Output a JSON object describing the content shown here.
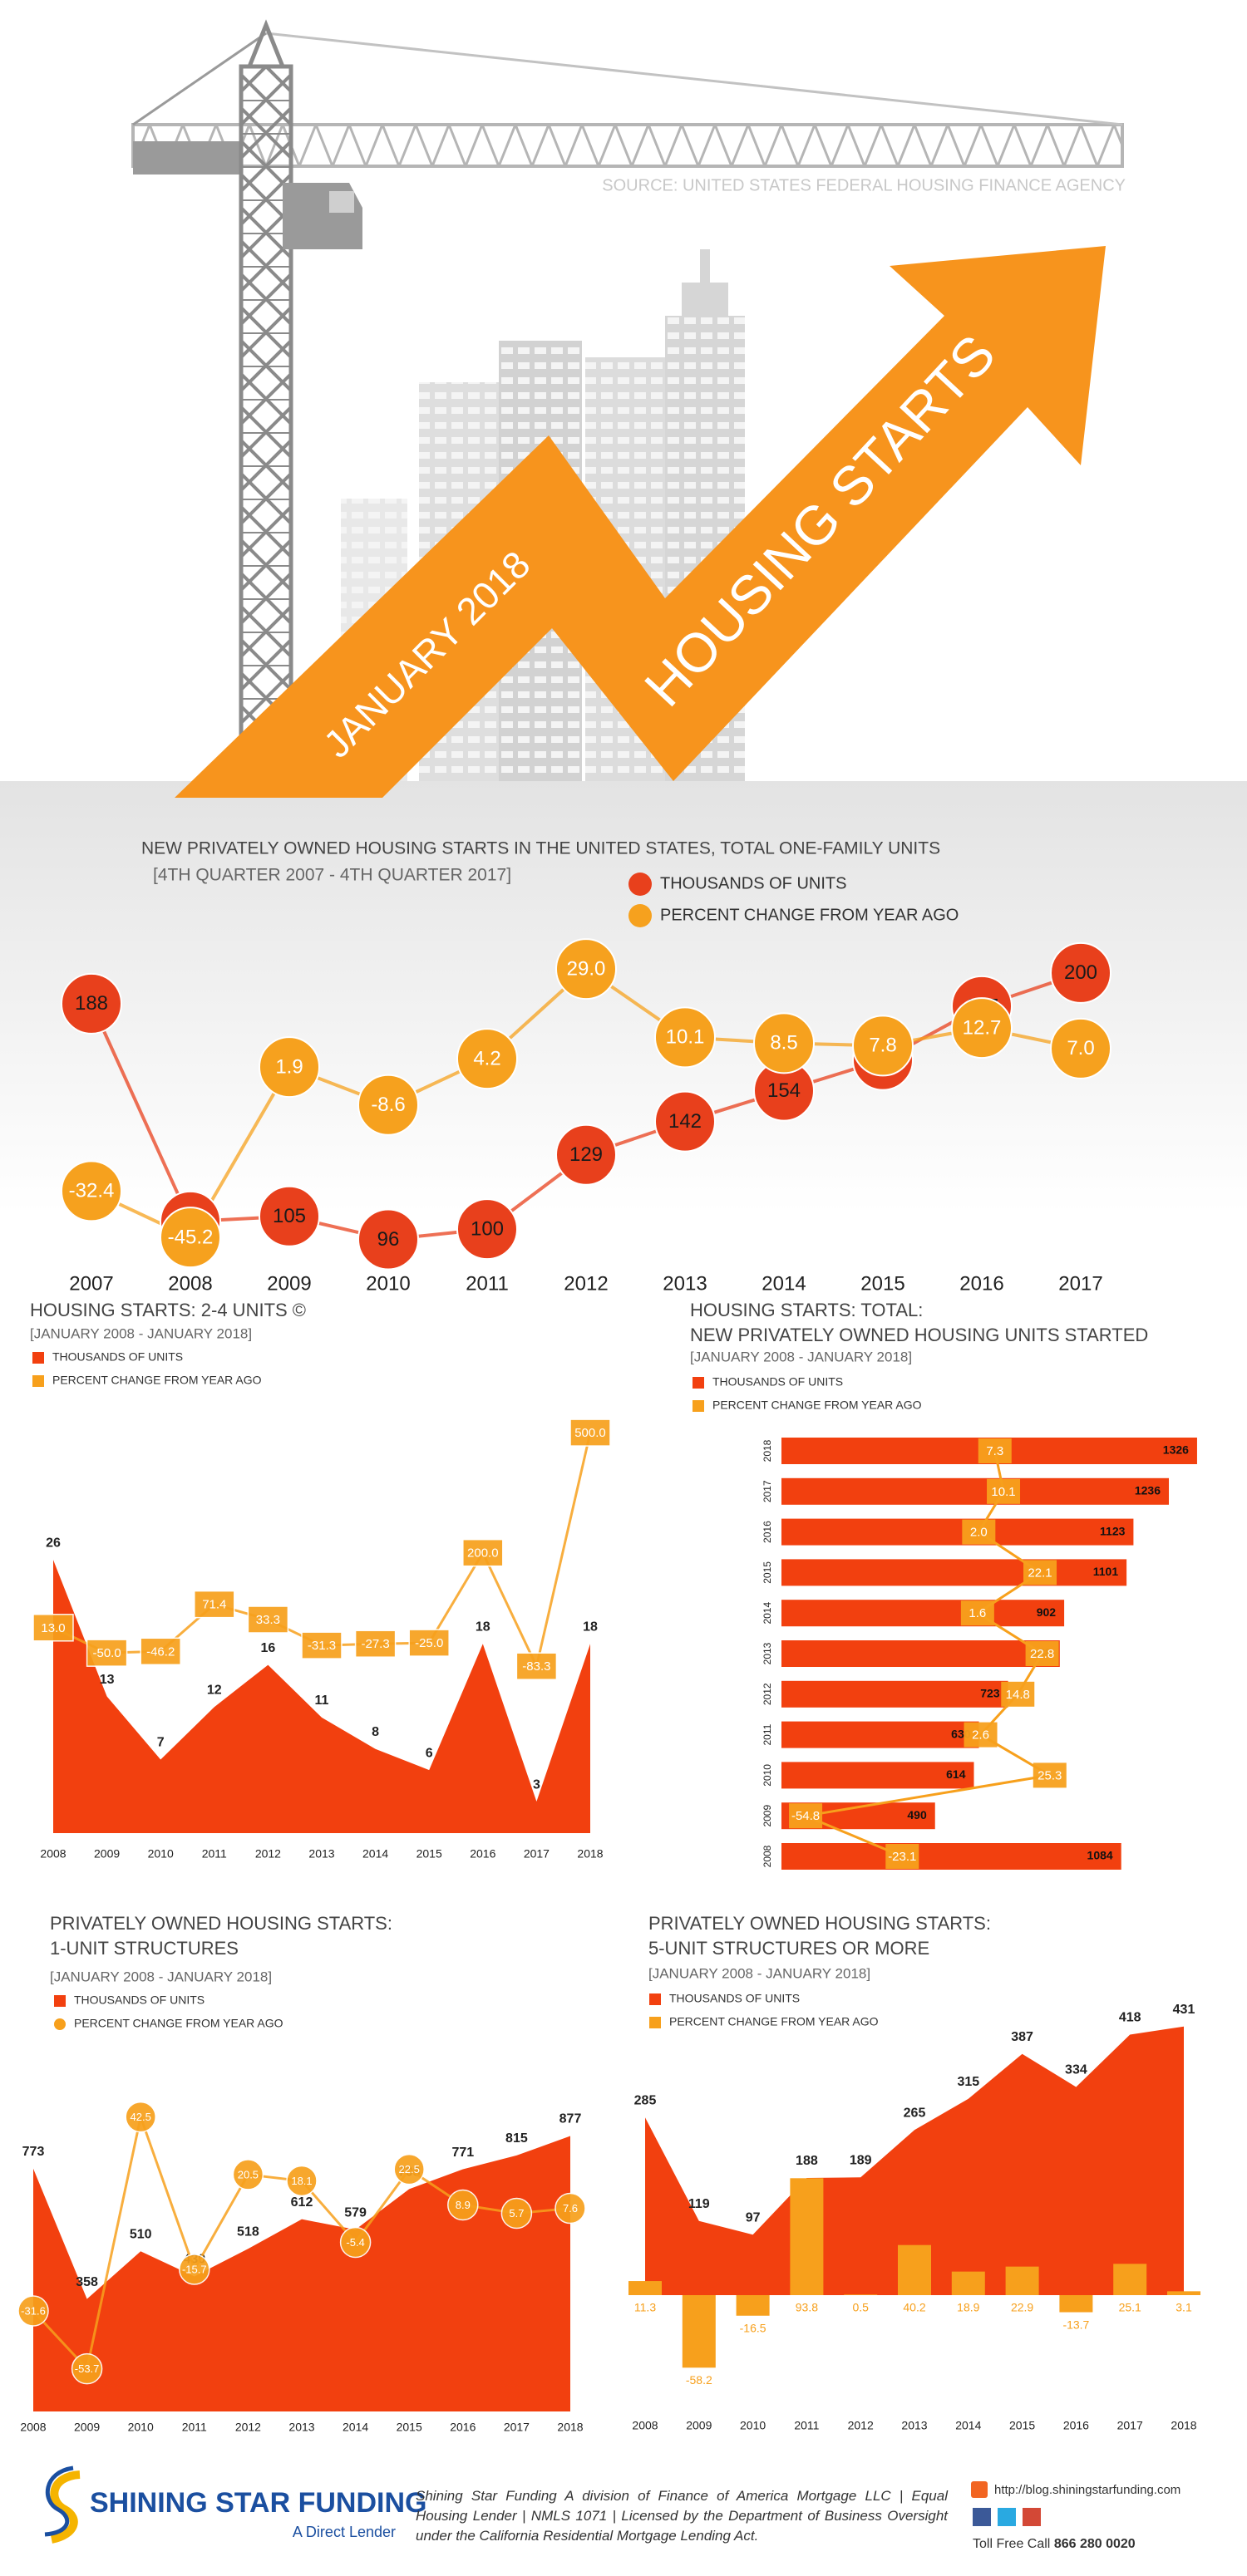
{
  "header": {
    "source": "SOURCE: UNITED STATES FEDERAL HOUSING FINANCE AGENCY",
    "date": "JANUARY 2018",
    "title": "HOUSING STARTS"
  },
  "chart_data": [
    {
      "type": "line",
      "title": "NEW PRIVATELY OWNED HOUSING STARTS IN THE UNITED STATES, TOTAL ONE-FAMILY UNITS",
      "subtitle": "[4TH QUARTER 2007 - 4TH QUARTER 2017]",
      "categories": [
        "2007",
        "2008",
        "2009",
        "2010",
        "2011",
        "2012",
        "2013",
        "2014",
        "2015",
        "2016",
        "2017"
      ],
      "series": [
        {
          "name": "THOUSANDS OF UNITS",
          "color": "#e8401c",
          "marker": "circle",
          "values": [
            188,
            103,
            105,
            96,
            100,
            129,
            142,
            154,
            166,
            187,
            200
          ]
        },
        {
          "name": "PERCENT CHANGE FROM YEAR AGO",
          "color": "#f6a11e",
          "marker": "circle",
          "axis": "y2",
          "values": [
            -32.4,
            -45.2,
            1.9,
            -8.6,
            4.2,
            29,
            10.1,
            8.5,
            7.8,
            12.7,
            7
          ],
          "value_labels": [
            "-32.4",
            "-45.2",
            "1.9",
            "-8.6",
            "4.2",
            "29.0",
            "10.1",
            "8.5",
            "7.8",
            "12.7",
            "7.0"
          ]
        }
      ],
      "ylim": [
        90,
        210
      ],
      "y2lim": [
        -50,
        35
      ]
    },
    {
      "type": "area",
      "title": "HOUSING STARTS: 2-4 UNITS ©",
      "subtitle": "[JANUARY 2008 - JANUARY 2018]",
      "categories": [
        "2008",
        "2009",
        "2010",
        "2011",
        "2012",
        "2013",
        "2014",
        "2015",
        "2016",
        "2017",
        "2018"
      ],
      "series": [
        {
          "name": "THOUSANDS OF UNITS",
          "color": "#f2400f",
          "marker": "square",
          "type": "area",
          "values": [
            26,
            13,
            7,
            12,
            16,
            11,
            8,
            6,
            18,
            3,
            18
          ]
        },
        {
          "name": "PERCENT CHANGE FROM YEAR AGO",
          "color": "#f7a01c",
          "marker": "square",
          "type": "line",
          "axis": "y2",
          "values": [
            13,
            -50,
            -46.2,
            71.4,
            33.3,
            -31.3,
            -27.3,
            -25,
            200,
            -83.3,
            500
          ],
          "value_labels": [
            "13.0",
            "-50.0",
            "-46.2",
            "71.4",
            "33.3",
            "-31.3",
            "-27.3",
            "-25.0",
            "200.0",
            "-83.3",
            "500.0"
          ]
        }
      ],
      "ylim": [
        0,
        40
      ],
      "y2lim": [
        -500,
        550
      ]
    },
    {
      "type": "bar",
      "title": [
        "HOUSING STARTS: TOTAL:",
        "NEW PRIVATELY OWNED HOUSING UNITS STARTED"
      ],
      "subtitle": "[JANUARY 2008 - JANUARY 2018]",
      "categories": [
        "2018",
        "2017",
        "2016",
        "2015",
        "2014",
        "2013",
        "2012",
        "2011",
        "2010",
        "2009",
        "2008"
      ],
      "series": [
        {
          "name": "THOUSANDS OF UNITS",
          "color": "#f2400f",
          "marker": "square",
          "type": "bar",
          "values": [
            1326,
            1236,
            1123,
            1101,
            902,
            888,
            723,
            630,
            614,
            490,
            1084
          ]
        },
        {
          "name": "PERCENT CHANGE FROM YEAR AGO",
          "color": "#f7a01c",
          "marker": "square",
          "type": "line",
          "axis": "x2",
          "values": [
            7.3,
            10.1,
            2,
            22.1,
            1.6,
            22.8,
            14.8,
            2.6,
            25.3,
            -54.8,
            -23.1
          ],
          "value_labels": [
            "7.3",
            "10.1",
            "2.0",
            "22.1",
            "1.6",
            "22.8",
            "14.8",
            "2.6",
            "25.3",
            "-54.8",
            "-23.1"
          ]
        }
      ],
      "xlim": [
        0,
        1350
      ],
      "x2lim": [
        -60,
        30
      ]
    },
    {
      "type": "area",
      "title": [
        "PRIVATELY OWNED HOUSING STARTS:",
        "1-UNIT STRUCTURES"
      ],
      "subtitle": "[JANUARY 2008 - JANUARY 2018]",
      "categories": [
        "2008",
        "2009",
        "2010",
        "2011",
        "2012",
        "2013",
        "2014",
        "2015",
        "2016",
        "2017",
        "2018"
      ],
      "series": [
        {
          "name": "THOUSANDS OF UNITS",
          "color": "#f2400f",
          "marker": "square",
          "type": "area",
          "values": [
            773,
            358,
            510,
            430,
            518,
            612,
            579,
            708,
            771,
            815,
            877
          ]
        },
        {
          "name": "PERCENT CHANGE FROM YEAR AGO",
          "color": "#f7a01c",
          "marker": "circle",
          "type": "line",
          "axis": "y2",
          "values": [
            -31.6,
            -53.7,
            42.5,
            -15.7,
            20.5,
            18.1,
            -5.4,
            22.5,
            8.9,
            5.7,
            7.6
          ]
        }
      ],
      "ylim": [
        0,
        1000
      ],
      "y2lim": [
        -70,
        50
      ]
    },
    {
      "type": "area",
      "title": [
        "PRIVATELY OWNED HOUSING STARTS:",
        "5-UNIT STRUCTURES OR MORE"
      ],
      "subtitle": "[JANUARY 2008 - JANUARY 2018]",
      "categories": [
        "2008",
        "2009",
        "2010",
        "2011",
        "2012",
        "2013",
        "2014",
        "2015",
        "2016",
        "2017",
        "2018"
      ],
      "series": [
        {
          "name": "THOUSANDS OF UNITS",
          "color": "#f2400f",
          "marker": "square",
          "type": "area",
          "values": [
            285,
            119,
            97,
            188,
            189,
            265,
            315,
            387,
            334,
            418,
            431
          ]
        },
        {
          "name": "PERCENT CHANGE FROM YEAR AGO",
          "color": "#f7a01c",
          "marker": "square",
          "type": "bar",
          "axis": "y2",
          "values": [
            11.3,
            -58.2,
            -16.5,
            93.8,
            0.5,
            40.2,
            18.9,
            22.9,
            -13.7,
            25.1,
            3.1
          ]
        }
      ],
      "ylim": [
        -160,
        500
      ],
      "y2lim": [
        -80,
        250
      ]
    }
  ],
  "footer": {
    "brand": "SHINING STAR FUNDING",
    "tagline": "A Direct Lender",
    "disclosure": "Shining Star Funding A division of Finance of America Mortgage LLC | Equal Housing Lender | NMLS 1071 | Licensed by the Department of Business Oversight under the California Residential Mortgage Lending Act.",
    "url": "http://blog.shiningstarfunding.com",
    "phone_label": "Toll Free Call",
    "phone": "866 280 0020"
  }
}
